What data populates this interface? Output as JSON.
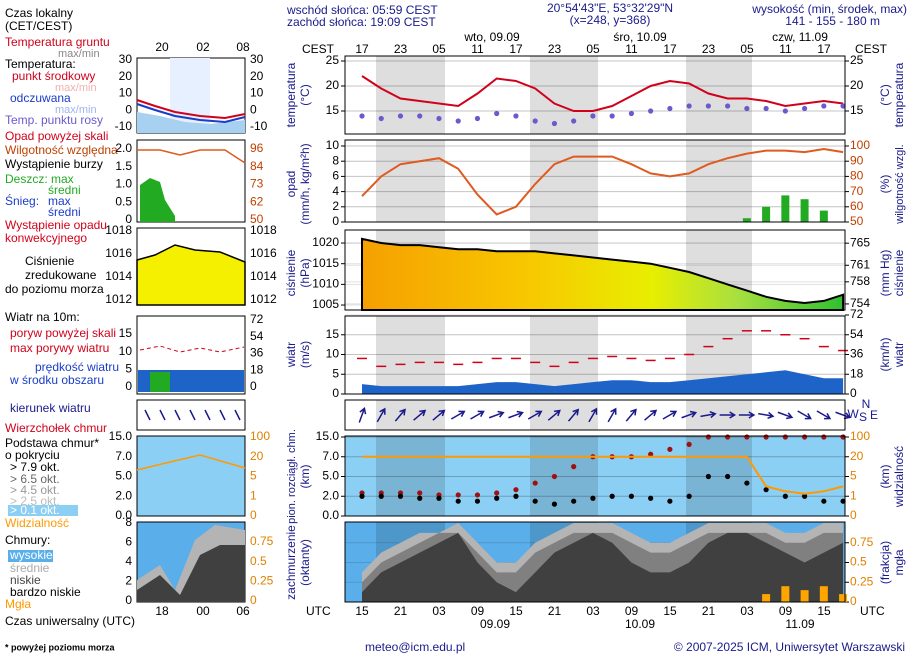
{
  "header": {
    "sunrise": "wschód słońca: 05:59 CEST",
    "sunset": "zachód słońca: 19:09 CEST",
    "coords": "20°54'43\"E, 53°32'29\"N",
    "grid": "(x=248,  y=368)",
    "elevation_title": "wysokość (min, środek, max)",
    "elevation": "141 - 155 - 180 m"
  },
  "time_axis": {
    "top_title": "CEST",
    "top_labels": [
      "17",
      "23",
      "05",
      "11",
      "17",
      "23",
      "05",
      "11",
      "17",
      "23",
      "05",
      "11",
      "17"
    ],
    "dates_top": [
      "wto, 09.09",
      "śro, 10.09",
      "czw, 11.09"
    ],
    "bottom_title": "UTC",
    "bottom_labels": [
      "15",
      "21",
      "03",
      "09",
      "15",
      "21",
      "03",
      "09",
      "15",
      "21",
      "03",
      "09",
      "15"
    ],
    "dates_bottom": [
      "09.09",
      "10.09",
      "11.09"
    ]
  },
  "chart_data": [
    {
      "type": "line",
      "ylabel": [
        "temperatura",
        "(°C)"
      ],
      "y2label": [
        "(°C)",
        "temperatura"
      ],
      "xlim": [
        14.35,
        92.3
      ],
      "x": [
        17,
        20,
        23,
        26,
        29,
        32,
        35,
        38,
        41,
        44,
        47,
        50,
        53,
        56,
        59,
        62,
        65,
        68,
        71,
        74,
        77,
        80,
        83,
        86,
        89,
        92
      ],
      "ylim": [
        10.4,
        26
      ],
      "yticks": [
        25,
        20,
        15
      ],
      "y2lim": [
        10.4,
        26
      ],
      "y2ticks": [
        25,
        20,
        15
      ],
      "series": [
        {
          "name": "punkt środkowy",
          "color": "#d0021b",
          "kind": "line",
          "values": [
            22,
            19.5,
            17.5,
            17,
            16.5,
            16,
            18.5,
            21.5,
            21,
            19.5,
            16.5,
            15,
            15,
            16,
            18,
            20,
            21,
            20.5,
            18.5,
            17.5,
            17.5,
            17,
            16,
            16.5,
            17,
            16.5
          ]
        },
        {
          "name": "Temp. punktu rosy",
          "color": "#6a5acd",
          "kind": "dots",
          "values": [
            14,
            13.5,
            14,
            14,
            13.5,
            13,
            13.5,
            14.5,
            14,
            13,
            12.5,
            13,
            14,
            14,
            14.5,
            15,
            15.5,
            16,
            16,
            16,
            15.5,
            15.5,
            15,
            15.5,
            16,
            16
          ]
        }
      ]
    },
    {
      "type": "combo",
      "ylabel": [
        "opad",
        "(mm/h, kg/m²h)"
      ],
      "y2label": [
        "(%)",
        "wilgotność wzgl."
      ],
      "xlim": [
        14.35,
        92.3
      ],
      "x": [
        17,
        20,
        23,
        26,
        29,
        32,
        35,
        38,
        41,
        44,
        47,
        50,
        53,
        56,
        59,
        62,
        65,
        68,
        71,
        74,
        77,
        80,
        83,
        86,
        89,
        92
      ],
      "ylim": [
        0,
        10
      ],
      "yticks": [
        10,
        8,
        6,
        4,
        2,
        0
      ],
      "y2lim": [
        50,
        100
      ],
      "y2ticks": [
        100,
        90,
        80,
        70,
        60,
        50
      ],
      "series": [
        {
          "name": "Deszcz: max",
          "color": "#22aa22",
          "kind": "bar",
          "values": [
            0,
            0,
            0,
            0,
            0,
            0,
            0,
            0,
            0,
            0,
            0,
            0,
            0,
            0,
            0,
            0,
            0,
            0,
            0,
            0,
            0.5,
            2,
            3.5,
            3,
            1.5,
            0
          ]
        },
        {
          "name": "Wilgotność względna",
          "color": "#e05a1e",
          "kind": "line",
          "axis": "y2",
          "values": [
            67,
            80,
            88,
            90,
            92,
            85,
            68,
            55,
            60,
            75,
            88,
            93,
            93,
            93,
            88,
            82,
            80,
            82,
            88,
            92,
            95,
            97,
            97,
            96,
            98,
            96
          ]
        }
      ]
    },
    {
      "type": "area",
      "ylabel": [
        "ciśnienie",
        "(hPa)"
      ],
      "y2label": [
        "(mm Hg)",
        "ciśnienie"
      ],
      "xlim": [
        14.35,
        92.3
      ],
      "x": [
        17,
        20,
        23,
        26,
        29,
        32,
        35,
        38,
        41,
        44,
        47,
        50,
        53,
        56,
        59,
        62,
        65,
        68,
        71,
        74,
        77,
        80,
        83,
        86,
        89,
        92
      ],
      "ylim": [
        1003.8,
        1021.7
      ],
      "yticks": [
        1020,
        1015,
        1010,
        1005
      ],
      "y2lim": [
        752.9,
        766.3
      ],
      "y2ticks": [
        765,
        761,
        758,
        754
      ],
      "series": [
        {
          "color": "#000000",
          "kind": "area",
          "values": [
            1021,
            1020,
            1019.5,
            1019.5,
            1019,
            1018.5,
            1018.5,
            1018,
            1018,
            1018,
            1017.5,
            1017,
            1016.5,
            1016,
            1015.5,
            1015,
            1014,
            1013,
            1011.5,
            1010,
            1008.5,
            1007,
            1006,
            1005.5,
            1006,
            1007.5
          ]
        }
      ]
    },
    {
      "type": "combo",
      "ylabel": [
        "wiatr",
        "(m/s)"
      ],
      "y2label": [
        "(km/h)",
        "wiatr"
      ],
      "xlim": [
        14.35,
        92.3
      ],
      "x": [
        17,
        20,
        23,
        26,
        29,
        32,
        35,
        38,
        41,
        44,
        47,
        50,
        53,
        56,
        59,
        62,
        65,
        68,
        71,
        74,
        77,
        80,
        83,
        86,
        89,
        92
      ],
      "ylim": [
        0,
        20
      ],
      "yticks": [
        15,
        10,
        5,
        0
      ],
      "y2lim": [
        0,
        72
      ],
      "y2ticks": [
        72,
        54,
        36,
        18,
        0
      ],
      "series": [
        {
          "name": "prędkość wiatru",
          "color": "#1e64c8",
          "kind": "area",
          "values": [
            2.5,
            2,
            2,
            2,
            2,
            2,
            2.5,
            3,
            3,
            2.5,
            2,
            2.5,
            3,
            3.5,
            3.5,
            3,
            3,
            3.5,
            4,
            4.5,
            5,
            5.5,
            6,
            5,
            4,
            4
          ]
        },
        {
          "name": "max porywy wiatru",
          "color": "#d0021b",
          "kind": "dash",
          "values": [
            9,
            7,
            7.5,
            8,
            8,
            7.5,
            8,
            9,
            9,
            8,
            7,
            8,
            9,
            9.5,
            9,
            8.5,
            9,
            10,
            12,
            14,
            16,
            16,
            15,
            14,
            12,
            11
          ]
        }
      ]
    },
    {
      "type": "arrows",
      "compass": [
        "N",
        "W",
        "E",
        "S"
      ],
      "xlim": [
        14.35,
        92.3
      ],
      "x": [
        17,
        20,
        23,
        26,
        29,
        32,
        35,
        38,
        41,
        44,
        47,
        50,
        53,
        56,
        59,
        62,
        65,
        68,
        71,
        74,
        77,
        80,
        83,
        86,
        89,
        92
      ],
      "series": [
        {
          "name": "kierunek wiatru",
          "color": "#1a1a8c",
          "kind": "arrow",
          "values": [
            200,
            210,
            220,
            230,
            230,
            240,
            240,
            250,
            250,
            240,
            230,
            220,
            210,
            210,
            220,
            230,
            240,
            250,
            260,
            270,
            270,
            280,
            290,
            300,
            300,
            290
          ]
        }
      ]
    },
    {
      "type": "dots",
      "nonlinear": true,
      "ylabel": [
        "pion. rozciągł. chm.",
        "(km)"
      ],
      "y2label": [
        "(km)",
        "widzialność"
      ],
      "xlim": [
        14.35,
        92.3
      ],
      "x": [
        17,
        20,
        23,
        26,
        29,
        32,
        35,
        38,
        41,
        44,
        47,
        50,
        53,
        56,
        59,
        62,
        65,
        68,
        71,
        74,
        77,
        80,
        83,
        86,
        89,
        92
      ],
      "ylim": [
        0,
        15
      ],
      "yticks": [
        {
          "value": 15,
          "label": "15.0"
        },
        {
          "value": 7,
          "label": "7.0"
        },
        {
          "value": 5,
          "label": "5.0"
        },
        {
          "value": 2,
          "label": "2.0"
        },
        {
          "value": 0,
          "label": "0.0"
        }
      ],
      "y2lim": [
        0,
        100
      ],
      "y2ticks": [
        100,
        20,
        5,
        1,
        0
      ],
      "series": [
        {
          "name": "Wierzchołek chmur",
          "color": "#a01010",
          "kind": "dots",
          "values": [
            2.5,
            2.5,
            2.5,
            2.5,
            2.2,
            2.2,
            2.2,
            2.5,
            3,
            4,
            5,
            6,
            7,
            7,
            7,
            8,
            10,
            12,
            15,
            15,
            15,
            15,
            15,
            15,
            15,
            15
          ]
        },
        {
          "name": "> 7.9 okt.",
          "color": "#000000",
          "kind": "dots",
          "values": [
            2,
            2,
            2,
            1.8,
            1.8,
            1.5,
            1.5,
            1.8,
            2,
            1.5,
            1.2,
            1.5,
            1.8,
            2,
            2,
            1.8,
            1.5,
            2,
            5,
            5,
            4,
            3,
            2,
            2,
            1.5,
            1.5
          ]
        },
        {
          "name": "Widzialność",
          "color": "#ff9900",
          "kind": "line",
          "axis": "y2",
          "values": [
            20,
            20,
            20,
            20,
            20,
            20,
            20,
            20,
            20,
            20,
            20,
            20,
            20,
            20,
            20,
            20,
            20,
            20,
            20,
            20,
            20,
            3,
            2,
            1.5,
            2,
            3
          ]
        }
      ]
    },
    {
      "type": "area",
      "ylabel": [
        "zachmurzenie",
        "(oktanty)"
      ],
      "y2label": [
        "(frakcja)",
        "mgła"
      ],
      "xlim": [
        14.35,
        92.3
      ],
      "x": [
        17,
        20,
        23,
        26,
        29,
        32,
        35,
        38,
        41,
        44,
        47,
        50,
        53,
        56,
        59,
        62,
        65,
        68,
        71,
        74,
        77,
        80,
        83,
        86,
        89,
        92
      ],
      "ylim": [
        0,
        8
      ],
      "y2lim": [
        0,
        1
      ],
      "y2ticks": [
        0.75,
        0.5,
        0.25,
        0
      ],
      "series": [
        {
          "name": "wysokie",
          "color": "#b4b4b4",
          "kind": "area",
          "values": [
            3,
            5,
            6,
            7,
            7,
            8,
            6,
            4,
            4,
            6,
            7,
            8,
            8,
            8,
            7,
            6,
            6,
            7,
            8,
            8,
            8,
            8,
            7,
            7,
            8,
            8
          ]
        },
        {
          "name": "średnie",
          "color": "#808080",
          "kind": "area",
          "values": [
            2,
            4,
            5,
            6,
            7,
            7,
            5,
            3,
            3,
            5,
            6,
            7,
            7,
            7,
            6,
            5,
            5,
            6,
            7,
            7,
            7,
            7,
            6,
            6,
            7,
            7
          ]
        },
        {
          "name": "niskie",
          "color": "#404040",
          "kind": "area",
          "values": [
            1,
            3,
            4,
            5,
            6,
            7,
            4,
            2,
            1,
            3,
            5,
            6,
            7,
            6,
            4,
            3,
            3,
            4,
            6,
            7,
            7,
            6,
            5,
            4,
            5,
            6
          ]
        },
        {
          "name": "Mgła",
          "color": "#ffa500",
          "kind": "bar",
          "axis": "y2",
          "values": [
            0,
            0,
            0,
            0,
            0,
            0,
            0,
            0,
            0,
            0,
            0,
            0,
            0,
            0,
            0,
            0,
            0,
            0,
            0,
            0,
            0,
            0.1,
            0.2,
            0.15,
            0.2,
            0.1
          ]
        }
      ]
    }
  ],
  "legend": {
    "local_time": [
      "Czas lokalny",
      "(CET/CEST)"
    ],
    "ground_temp": "Temperatura gruntu",
    "ground_temp_range": "max/min",
    "temperature": "Temperatura:",
    "temp_range": "max/min",
    "apparent": "odczuwana",
    "apparent_range": "max/min",
    "precip_over": "Opad powyżej skali",
    "storm": "Wystąpienie burzy",
    "rain_mean": "średni",
    "snow": "Śnieg:",
    "snow_max": "max",
    "snow_mean": "średni",
    "convective": [
      "Wystąpienie opadu",
      "konwekcyjnego"
    ],
    "pressure": [
      "Ciśnienie",
      "zredukowane",
      "do poziomu morza"
    ],
    "wind_title": "Wiatr na 10m:",
    "gust_over": "poryw powyżej skali",
    "wind_area": "w środku obszaru",
    "cloud_base": [
      "Podstawa chmur*",
      "o pokryciu"
    ],
    "okt": [
      "> 6.5 okt.",
      "> 4.5 okt.",
      "> 2.5 okt.",
      "> 0.1 okt."
    ],
    "clouds": "Chmury:",
    "very_low": "bardzo niskie",
    "utc": "Czas uniwersalny (UTC)"
  },
  "mini": {
    "top_labels": [
      "20",
      "02",
      "08"
    ],
    "bottom_labels": [
      "18",
      "00",
      "06"
    ],
    "panels": [
      {
        "left": [
          "30",
          "20",
          "10",
          "0",
          "-10"
        ],
        "right": [
          "30",
          "20",
          "10",
          "0",
          "-10"
        ]
      },
      {
        "left": [
          "2.0",
          "1.5",
          "1.0",
          "0.5",
          "0"
        ],
        "right": [
          "96",
          "84",
          "73",
          "62",
          "50"
        ]
      },
      {
        "left": [
          "1018",
          "1016",
          "1014",
          "1012"
        ],
        "right": [
          "1018",
          "1016",
          "1014",
          "1012"
        ]
      },
      {
        "left": [
          "15",
          "10",
          "5",
          "0"
        ],
        "right": [
          "72",
          "54",
          "36",
          "18",
          "0"
        ]
      },
      {
        "left": [
          "15.0",
          "7.0",
          "5.0",
          "2.0",
          "0.0"
        ],
        "right": [
          "100",
          "20",
          "5",
          "1",
          "0"
        ]
      },
      {
        "left": [
          "8",
          "6",
          "4",
          "2",
          "0"
        ],
        "right": [
          "0.75",
          "0.5",
          "0.25",
          "0"
        ]
      }
    ]
  },
  "footer": {
    "note": "* powyżej poziomu morza",
    "email": "meteo@icm.edu.pl",
    "copyright": "© 2007-2025 ICM, Uniwersytet Warszawski"
  }
}
